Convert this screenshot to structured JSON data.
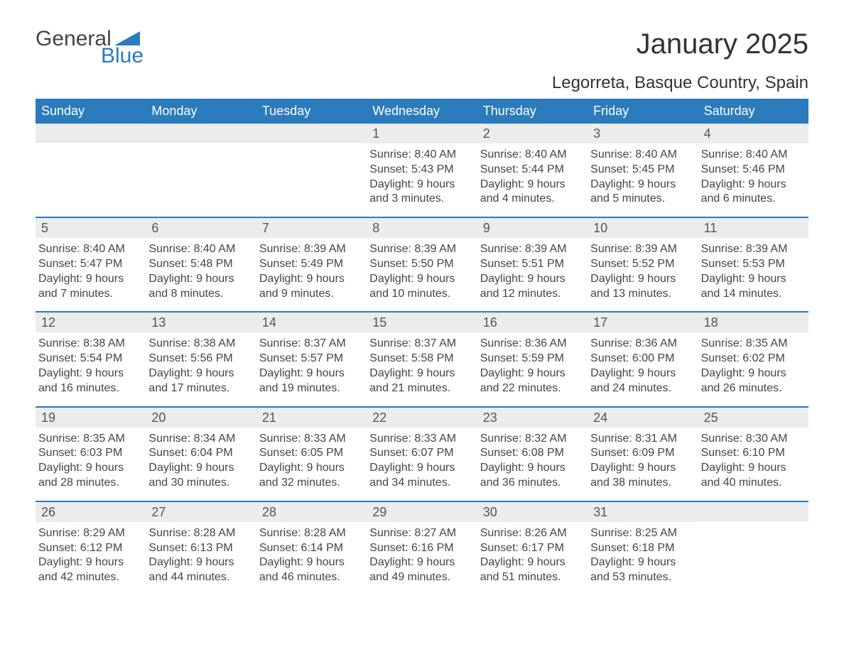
{
  "logo": {
    "text1": "General",
    "text2": "Blue"
  },
  "title": "January 2025",
  "location": "Legorreta, Basque Country, Spain",
  "colors": {
    "header_bg": "#2b7bbd",
    "header_text": "#ffffff",
    "daynum_bg": "#ececec",
    "text": "#444444",
    "week_border": "#2b7bbd"
  },
  "weekdays": [
    "Sunday",
    "Monday",
    "Tuesday",
    "Wednesday",
    "Thursday",
    "Friday",
    "Saturday"
  ],
  "weeks": [
    [
      {
        "empty": true
      },
      {
        "empty": true
      },
      {
        "empty": true
      },
      {
        "day": "1",
        "sunrise": "Sunrise: 8:40 AM",
        "sunset": "Sunset: 5:43 PM",
        "dl1": "Daylight: 9 hours",
        "dl2": "and 3 minutes."
      },
      {
        "day": "2",
        "sunrise": "Sunrise: 8:40 AM",
        "sunset": "Sunset: 5:44 PM",
        "dl1": "Daylight: 9 hours",
        "dl2": "and 4 minutes."
      },
      {
        "day": "3",
        "sunrise": "Sunrise: 8:40 AM",
        "sunset": "Sunset: 5:45 PM",
        "dl1": "Daylight: 9 hours",
        "dl2": "and 5 minutes."
      },
      {
        "day": "4",
        "sunrise": "Sunrise: 8:40 AM",
        "sunset": "Sunset: 5:46 PM",
        "dl1": "Daylight: 9 hours",
        "dl2": "and 6 minutes."
      }
    ],
    [
      {
        "day": "5",
        "sunrise": "Sunrise: 8:40 AM",
        "sunset": "Sunset: 5:47 PM",
        "dl1": "Daylight: 9 hours",
        "dl2": "and 7 minutes."
      },
      {
        "day": "6",
        "sunrise": "Sunrise: 8:40 AM",
        "sunset": "Sunset: 5:48 PM",
        "dl1": "Daylight: 9 hours",
        "dl2": "and 8 minutes."
      },
      {
        "day": "7",
        "sunrise": "Sunrise: 8:39 AM",
        "sunset": "Sunset: 5:49 PM",
        "dl1": "Daylight: 9 hours",
        "dl2": "and 9 minutes."
      },
      {
        "day": "8",
        "sunrise": "Sunrise: 8:39 AM",
        "sunset": "Sunset: 5:50 PM",
        "dl1": "Daylight: 9 hours",
        "dl2": "and 10 minutes."
      },
      {
        "day": "9",
        "sunrise": "Sunrise: 8:39 AM",
        "sunset": "Sunset: 5:51 PM",
        "dl1": "Daylight: 9 hours",
        "dl2": "and 12 minutes."
      },
      {
        "day": "10",
        "sunrise": "Sunrise: 8:39 AM",
        "sunset": "Sunset: 5:52 PM",
        "dl1": "Daylight: 9 hours",
        "dl2": "and 13 minutes."
      },
      {
        "day": "11",
        "sunrise": "Sunrise: 8:39 AM",
        "sunset": "Sunset: 5:53 PM",
        "dl1": "Daylight: 9 hours",
        "dl2": "and 14 minutes."
      }
    ],
    [
      {
        "day": "12",
        "sunrise": "Sunrise: 8:38 AM",
        "sunset": "Sunset: 5:54 PM",
        "dl1": "Daylight: 9 hours",
        "dl2": "and 16 minutes."
      },
      {
        "day": "13",
        "sunrise": "Sunrise: 8:38 AM",
        "sunset": "Sunset: 5:56 PM",
        "dl1": "Daylight: 9 hours",
        "dl2": "and 17 minutes."
      },
      {
        "day": "14",
        "sunrise": "Sunrise: 8:37 AM",
        "sunset": "Sunset: 5:57 PM",
        "dl1": "Daylight: 9 hours",
        "dl2": "and 19 minutes."
      },
      {
        "day": "15",
        "sunrise": "Sunrise: 8:37 AM",
        "sunset": "Sunset: 5:58 PM",
        "dl1": "Daylight: 9 hours",
        "dl2": "and 21 minutes."
      },
      {
        "day": "16",
        "sunrise": "Sunrise: 8:36 AM",
        "sunset": "Sunset: 5:59 PM",
        "dl1": "Daylight: 9 hours",
        "dl2": "and 22 minutes."
      },
      {
        "day": "17",
        "sunrise": "Sunrise: 8:36 AM",
        "sunset": "Sunset: 6:00 PM",
        "dl1": "Daylight: 9 hours",
        "dl2": "and 24 minutes."
      },
      {
        "day": "18",
        "sunrise": "Sunrise: 8:35 AM",
        "sunset": "Sunset: 6:02 PM",
        "dl1": "Daylight: 9 hours",
        "dl2": "and 26 minutes."
      }
    ],
    [
      {
        "day": "19",
        "sunrise": "Sunrise: 8:35 AM",
        "sunset": "Sunset: 6:03 PM",
        "dl1": "Daylight: 9 hours",
        "dl2": "and 28 minutes."
      },
      {
        "day": "20",
        "sunrise": "Sunrise: 8:34 AM",
        "sunset": "Sunset: 6:04 PM",
        "dl1": "Daylight: 9 hours",
        "dl2": "and 30 minutes."
      },
      {
        "day": "21",
        "sunrise": "Sunrise: 8:33 AM",
        "sunset": "Sunset: 6:05 PM",
        "dl1": "Daylight: 9 hours",
        "dl2": "and 32 minutes."
      },
      {
        "day": "22",
        "sunrise": "Sunrise: 8:33 AM",
        "sunset": "Sunset: 6:07 PM",
        "dl1": "Daylight: 9 hours",
        "dl2": "and 34 minutes."
      },
      {
        "day": "23",
        "sunrise": "Sunrise: 8:32 AM",
        "sunset": "Sunset: 6:08 PM",
        "dl1": "Daylight: 9 hours",
        "dl2": "and 36 minutes."
      },
      {
        "day": "24",
        "sunrise": "Sunrise: 8:31 AM",
        "sunset": "Sunset: 6:09 PM",
        "dl1": "Daylight: 9 hours",
        "dl2": "and 38 minutes."
      },
      {
        "day": "25",
        "sunrise": "Sunrise: 8:30 AM",
        "sunset": "Sunset: 6:10 PM",
        "dl1": "Daylight: 9 hours",
        "dl2": "and 40 minutes."
      }
    ],
    [
      {
        "day": "26",
        "sunrise": "Sunrise: 8:29 AM",
        "sunset": "Sunset: 6:12 PM",
        "dl1": "Daylight: 9 hours",
        "dl2": "and 42 minutes."
      },
      {
        "day": "27",
        "sunrise": "Sunrise: 8:28 AM",
        "sunset": "Sunset: 6:13 PM",
        "dl1": "Daylight: 9 hours",
        "dl2": "and 44 minutes."
      },
      {
        "day": "28",
        "sunrise": "Sunrise: 8:28 AM",
        "sunset": "Sunset: 6:14 PM",
        "dl1": "Daylight: 9 hours",
        "dl2": "and 46 minutes."
      },
      {
        "day": "29",
        "sunrise": "Sunrise: 8:27 AM",
        "sunset": "Sunset: 6:16 PM",
        "dl1": "Daylight: 9 hours",
        "dl2": "and 49 minutes."
      },
      {
        "day": "30",
        "sunrise": "Sunrise: 8:26 AM",
        "sunset": "Sunset: 6:17 PM",
        "dl1": "Daylight: 9 hours",
        "dl2": "and 51 minutes."
      },
      {
        "day": "31",
        "sunrise": "Sunrise: 8:25 AM",
        "sunset": "Sunset: 6:18 PM",
        "dl1": "Daylight: 9 hours",
        "dl2": "and 53 minutes."
      },
      {
        "empty": true
      }
    ]
  ]
}
